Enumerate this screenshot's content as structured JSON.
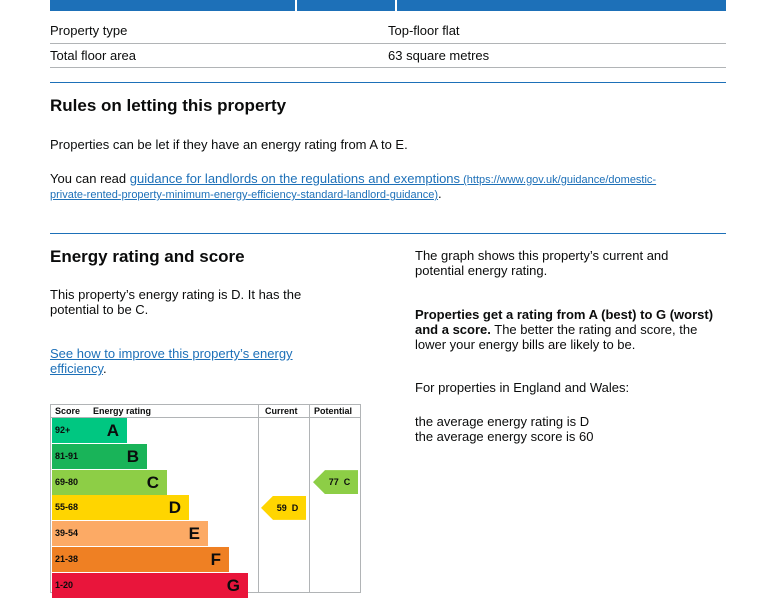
{
  "summary": {
    "rows": [
      {
        "label": "Property type",
        "value": "Top-floor flat"
      },
      {
        "label": "Total floor area",
        "value": "63 square metres"
      }
    ]
  },
  "letting": {
    "heading": "Rules on letting this property",
    "paragraph": "Properties can be let if they have an energy rating from A to E.",
    "read_prefix": "You can read ",
    "link_text": "guidance for landlords on the regulations and exemptions",
    "link_url_line1": " (https://www.gov.uk/guidance/domestic-",
    "link_url_line2": "private-rented-property-minimum-energy-efficiency-standard-landlord-guidance)",
    "read_suffix": "."
  },
  "rating": {
    "heading": "Energy rating and score",
    "intro_line1": "This property’s energy rating is D. It has the",
    "intro_line2": "potential to be C.",
    "improve_link_line1": "See how to improve this property’s energy",
    "improve_link_line2": "efficiency",
    "improve_suffix": "."
  },
  "side": {
    "graph_line1": "The graph shows this property’s current and",
    "graph_line2": "potential energy rating.",
    "bold_line1": "Properties get a rating from A (best) to G (worst)",
    "bold_line2": "and a score.",
    "plain_line2": " The better the rating and score, the",
    "plain_line3": "lower your energy bills are likely to be.",
    "region_text": "For properties in England and Wales:",
    "avg_rating": "the average energy rating is D",
    "avg_score": "the average energy score is 60"
  },
  "chart_data": {
    "type": "table",
    "headers": {
      "score": "Score",
      "rating": "Energy rating",
      "current": "Current",
      "potential": "Potential"
    },
    "bands": [
      {
        "range": "92+",
        "letter": "A",
        "color": "#00c781"
      },
      {
        "range": "81-91",
        "letter": "B",
        "color": "#19b459"
      },
      {
        "range": "69-80",
        "letter": "C",
        "color": "#8dce46"
      },
      {
        "range": "55-68",
        "letter": "D",
        "color": "#ffd500"
      },
      {
        "range": "39-54",
        "letter": "E",
        "color": "#fcaa65"
      },
      {
        "range": "21-38",
        "letter": "F",
        "color": "#ef8023"
      },
      {
        "range": "1-20",
        "letter": "G",
        "color": "#e9153b"
      }
    ],
    "current": {
      "score": 59,
      "letter": "D",
      "label": "59  D",
      "color": "#ffd500"
    },
    "potential": {
      "score": 77,
      "letter": "C",
      "label": "77  C",
      "color": "#8dce46"
    }
  }
}
